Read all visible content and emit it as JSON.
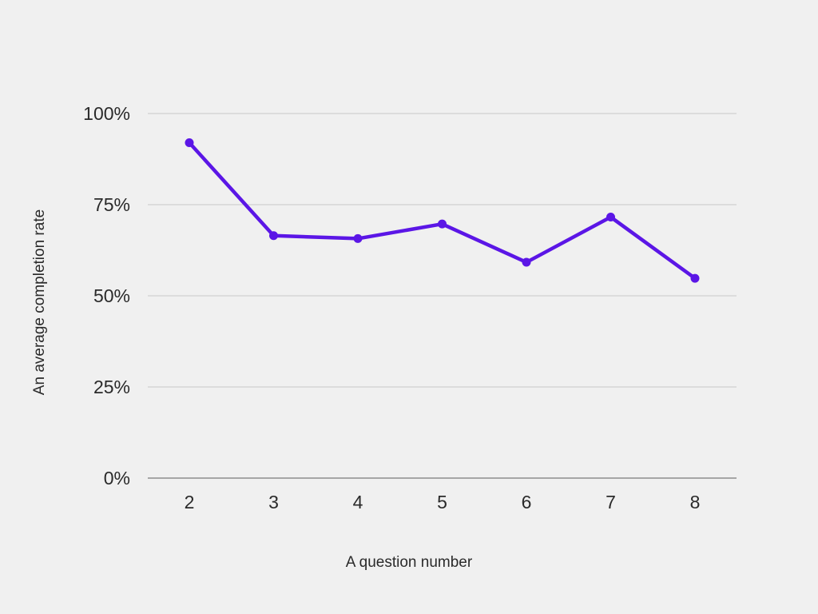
{
  "chart_data": {
    "type": "line",
    "xlabel": "A question number",
    "ylabel": "An average completion rate",
    "x": [
      2,
      3,
      4,
      5,
      6,
      7,
      8
    ],
    "series": [
      {
        "values": [
          92,
          66.5,
          65.7,
          69.7,
          59.2,
          71.6,
          54.8
        ]
      }
    ],
    "ylim": [
      0,
      100
    ],
    "yticks": [
      0,
      25,
      50,
      75,
      100
    ],
    "ytick_labels": [
      "0%",
      "25%",
      "50%",
      "75%",
      "100%"
    ],
    "grid": true,
    "legend": "none",
    "colors": {
      "line": "#5b16e6",
      "grid": "#c8c8c8",
      "axis": "#7a7a7a",
      "background": "#f0f0f0"
    }
  }
}
